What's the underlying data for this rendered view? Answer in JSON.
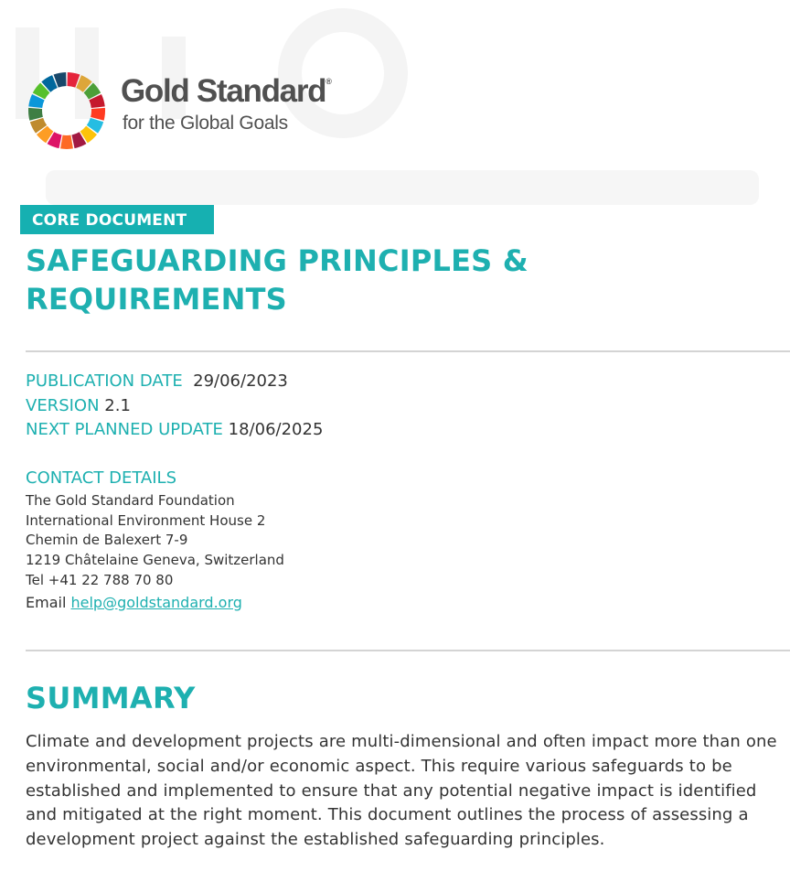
{
  "brand": {
    "name": "Gold Standard",
    "registered_mark": "®",
    "tagline": "for the Global Goals",
    "sdg_wheel_colors": [
      "#E5243B",
      "#DDA63A",
      "#4C9F38",
      "#C5192D",
      "#FF3A21",
      "#26BDE2",
      "#FCC30B",
      "#A21942",
      "#FD6925",
      "#DD1367",
      "#FD9D24",
      "#BF8B2E",
      "#3F7E44",
      "#0A97D9",
      "#56C02B",
      "#00689D",
      "#19486A"
    ]
  },
  "document": {
    "badge": "CORE DOCUMENT",
    "title_line1": "SAFEGUARDING PRINCIPLES &",
    "title_line2": "REQUIREMENTS"
  },
  "meta": {
    "publication_date_label": "PUBLICATION DATE",
    "publication_date": "29/06/2023",
    "version_label": "VERSION",
    "version": "2.1",
    "next_update_label": "NEXT PLANNED UPDATE",
    "next_update": "18/06/2025"
  },
  "contact": {
    "heading": "CONTACT DETAILS",
    "org": "The Gold Standard Foundation",
    "building": "International Environment House 2",
    "street": "Chemin de Balexert 7-9",
    "city": "1219 Châtelaine Geneva, Switzerland",
    "tel": "Tel +41 22 788 70 80",
    "email_label": "Email",
    "email": "help@goldstandard.org"
  },
  "summary": {
    "heading": "SUMMARY",
    "text": "Climate and development projects are multi-dimensional and often impact more than one environmental, social and/or economic aspect. This require various safeguards to be established and implemented to ensure that any potential negative impact is identified and mitigated at the right moment. This document outlines the process of assessing a development project against the established safeguarding principles."
  },
  "colors": {
    "accent": "#1eb0b0",
    "badge_bg": "#16b0b1",
    "text": "#333333",
    "brand_text": "#505050",
    "rule": "#d4d4d4"
  }
}
